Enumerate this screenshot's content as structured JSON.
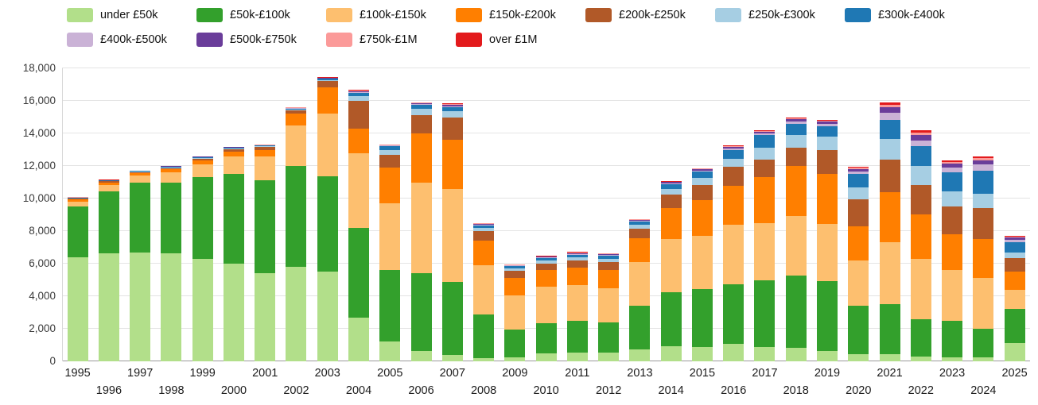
{
  "chart_data": {
    "type": "bar",
    "stacked": true,
    "title": "",
    "xlabel": "",
    "ylabel": "",
    "legend_position": "top",
    "grid": true,
    "ylim": [
      0,
      18000
    ],
    "yticks": [
      0,
      2000,
      4000,
      6000,
      8000,
      10000,
      12000,
      14000,
      16000,
      18000
    ],
    "ytick_labels": [
      "0",
      "2,000",
      "4,000",
      "6,000",
      "8,000",
      "10,000",
      "12,000",
      "14,000",
      "16,000",
      "18,000"
    ],
    "x": [
      "1995",
      "1996",
      "1997",
      "1998",
      "1999",
      "2000",
      "2001",
      "2002",
      "2003",
      "2004",
      "2005",
      "2006",
      "2007",
      "2008",
      "2009",
      "2010",
      "2011",
      "2012",
      "2013",
      "2014",
      "2015",
      "2016",
      "2017",
      "2018",
      "2019",
      "2020",
      "2021",
      "2022",
      "2023",
      "2024",
      "2025"
    ],
    "series": [
      {
        "name": "under £50k",
        "color": "#b2df8a",
        "values": [
          6400,
          6650,
          6700,
          6650,
          6300,
          6000,
          5400,
          5800,
          5500,
          2700,
          1200,
          650,
          400,
          200,
          250,
          500,
          550,
          550,
          750,
          950,
          900,
          1050,
          900,
          850,
          650,
          450,
          450,
          300,
          250,
          250,
          1100
        ]
      },
      {
        "name": "£50k-£100k",
        "color": "#33a02c",
        "values": [
          3100,
          3800,
          4300,
          4350,
          5000,
          5500,
          5700,
          6200,
          5850,
          5500,
          4400,
          4750,
          4500,
          2700,
          1700,
          1850,
          1950,
          1850,
          2650,
          3300,
          3550,
          3700,
          4100,
          4400,
          4300,
          2950,
          3050,
          2300,
          2250,
          1750,
          2100
        ]
      },
      {
        "name": "£100k-£150k",
        "color": "#fdbf6f",
        "values": [
          300,
          400,
          400,
          600,
          800,
          1100,
          1500,
          2500,
          3850,
          4600,
          4100,
          5600,
          5700,
          3000,
          2100,
          2250,
          2200,
          2100,
          2700,
          3250,
          3250,
          3650,
          3500,
          3700,
          3500,
          2800,
          3800,
          3700,
          3100,
          3100,
          1200
        ]
      },
      {
        "name": "£150k-£200k",
        "color": "#ff7f00",
        "values": [
          130,
          150,
          150,
          200,
          250,
          300,
          400,
          700,
          1650,
          1500,
          2200,
          3000,
          3000,
          1500,
          1050,
          1000,
          1050,
          1100,
          1450,
          1900,
          2200,
          2400,
          2800,
          3050,
          3050,
          2100,
          3100,
          2750,
          2200,
          2400,
          1100
        ]
      },
      {
        "name": "£200k-£250k",
        "color": "#b15928",
        "values": [
          60,
          60,
          70,
          80,
          100,
          120,
          150,
          200,
          350,
          1700,
          800,
          1100,
          1400,
          600,
          450,
          400,
          450,
          500,
          600,
          850,
          950,
          1150,
          1100,
          1100,
          1500,
          1650,
          2000,
          1800,
          1700,
          1900,
          850
        ]
      },
      {
        "name": "£250k-£300k",
        "color": "#a6cee3",
        "values": [
          30,
          30,
          40,
          40,
          50,
          60,
          50,
          60,
          80,
          300,
          300,
          400,
          350,
          200,
          170,
          180,
          180,
          200,
          250,
          330,
          400,
          500,
          700,
          800,
          800,
          750,
          1250,
          1150,
          950,
          900,
          350
        ]
      },
      {
        "name": "£300k-£400k",
        "color": "#1f78b4",
        "values": [
          25,
          25,
          30,
          35,
          40,
          45,
          50,
          60,
          70,
          200,
          200,
          250,
          250,
          150,
          130,
          170,
          170,
          180,
          200,
          300,
          400,
          550,
          800,
          700,
          650,
          800,
          1200,
          1200,
          1150,
          1400,
          600
        ]
      },
      {
        "name": "£400k-£500k",
        "color": "#cab2d6",
        "values": [
          10,
          10,
          10,
          15,
          15,
          20,
          20,
          25,
          30,
          60,
          50,
          60,
          80,
          50,
          40,
          50,
          60,
          60,
          50,
          70,
          80,
          90,
          100,
          150,
          150,
          180,
          400,
          380,
          300,
          380,
          160
        ]
      },
      {
        "name": "£500k-£750k",
        "color": "#6a3d9a",
        "values": [
          10,
          10,
          10,
          10,
          15,
          15,
          20,
          25,
          30,
          50,
          40,
          50,
          80,
          40,
          30,
          40,
          50,
          50,
          40,
          60,
          70,
          80,
          100,
          120,
          120,
          150,
          350,
          330,
          250,
          280,
          130
        ]
      },
      {
        "name": "£750k-£1M",
        "color": "#fb9a99",
        "values": [
          20,
          15,
          15,
          15,
          20,
          20,
          20,
          20,
          25,
          40,
          30,
          40,
          50,
          30,
          20,
          25,
          30,
          30,
          30,
          40,
          40,
          50,
          60,
          70,
          60,
          80,
          150,
          140,
          100,
          110,
          60
        ]
      },
      {
        "name": "over £1M",
        "color": "#e31a1c",
        "values": [
          10,
          10,
          10,
          10,
          10,
          10,
          15,
          15,
          20,
          30,
          25,
          30,
          40,
          25,
          20,
          20,
          25,
          25,
          25,
          30,
          35,
          40,
          50,
          60,
          50,
          70,
          150,
          130,
          100,
          100,
          50
        ]
      }
    ]
  }
}
